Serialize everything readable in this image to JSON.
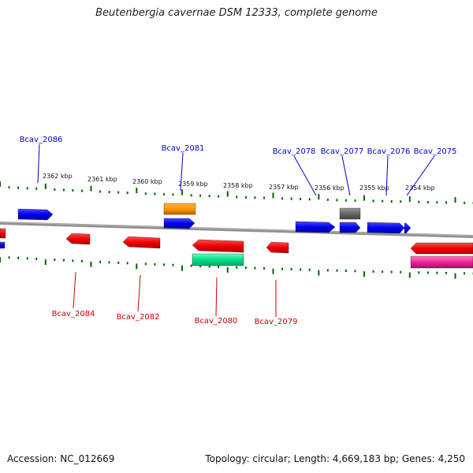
{
  "title": "Beutenbergia cavernae DSM 12333, complete genome",
  "footer": {
    "accession": "Accession: NC_012669",
    "summary": "Topology: circular; Length: 4,669,183 bp; Genes: 4,250"
  },
  "colors": {
    "backbone": "#808080",
    "forward_gene": "#0000ff",
    "reverse_gene": "#ff0000",
    "forward_label": "#0000cc",
    "reverse_label": "#cc0000",
    "tick": "#006600",
    "orange_feature": "#ff9900",
    "gray_feature": "#666666",
    "green_feature": "#00dd88",
    "magenta_feature": "#ee2299"
  },
  "scale_labels": [
    "2362 kbp",
    "2361 kbp",
    "2360 kbp",
    "2359 kbp",
    "2358 kbp",
    "2357 kbp",
    "2356 kbp",
    "2355 kbp",
    "2354 kbp"
  ],
  "gene_labels_top": [
    "Bcav_2086",
    "Bcav_2081",
    "Bcav_2078",
    "Bcav_2077",
    "Bcav_2076",
    "Bcav_2075"
  ],
  "gene_labels_bottom": [
    "Bcav_2084",
    "Bcav_2082",
    "Bcav_2080",
    "Bcav_2079"
  ]
}
